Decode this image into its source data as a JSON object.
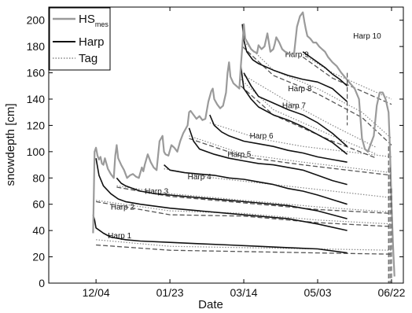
{
  "chart_data": {
    "type": "line",
    "xlabel": "Date",
    "ylabel": "snowdepth [cm]",
    "x_tick_labels": [
      "12/04",
      "01/23",
      "03/14",
      "05/03",
      "06/22"
    ],
    "x_tick_values": [
      0,
      50,
      100,
      150,
      200
    ],
    "xlim": [
      -32,
      208
    ],
    "ylim": [
      0,
      210
    ],
    "y_ticks": [
      0,
      20,
      40,
      60,
      80,
      100,
      120,
      140,
      160,
      180,
      200
    ],
    "grid": false,
    "legend": {
      "placement": "top-left",
      "entries": [
        {
          "text": "HS",
          "subscript": "mes",
          "style": "gray-solid-thick"
        },
        {
          "text": "Harp",
          "style": "black-solid"
        },
        {
          "text": "Tag",
          "style": "gray-dotted"
        }
      ]
    },
    "colors": {
      "hs": "#9a9a9a",
      "harp": "#111111",
      "tag": "#888888",
      "dashed": "#555555"
    },
    "series": [
      {
        "name": "HS",
        "style": "hs",
        "x": [
          -2,
          -1,
          0,
          1,
          2,
          3,
          4,
          5,
          6,
          8,
          10,
          12,
          13,
          14,
          15,
          17,
          19,
          21,
          23,
          25,
          27,
          29,
          31,
          32,
          33,
          35,
          37,
          39,
          41,
          43,
          45,
          46,
          47,
          49,
          51,
          53,
          55,
          57,
          59,
          62,
          63,
          64,
          66,
          68,
          70,
          72,
          74,
          76,
          78,
          79,
          80,
          82,
          84,
          86,
          88,
          89,
          90,
          91,
          93,
          95,
          97,
          98,
          99,
          100,
          101,
          103,
          105,
          107,
          109,
          110,
          112,
          114,
          116,
          118,
          120,
          121,
          122,
          124,
          126,
          128,
          130,
          132,
          134,
          136,
          138,
          140,
          141,
          142,
          143,
          145,
          147,
          149,
          151,
          153,
          155,
          157,
          160,
          163,
          166,
          169,
          172,
          175,
          178,
          180,
          182,
          184,
          186,
          188,
          190,
          192,
          194,
          196,
          198,
          199,
          200,
          201,
          202
        ],
        "y": [
          38,
          100,
          103,
          97,
          94,
          96,
          91,
          90,
          95,
          87,
          83,
          80,
          97,
          105,
          95,
          90,
          86,
          80,
          82,
          83,
          81,
          80,
          88,
          85,
          90,
          98,
          92,
          88,
          86,
          108,
          112,
          100,
          98,
          97,
          105,
          103,
          100,
          108,
          114,
          120,
          130,
          131,
          128,
          125,
          127,
          124,
          125,
          138,
          146,
          148,
          140,
          136,
          133,
          135,
          145,
          160,
          168,
          157,
          152,
          150,
          148,
          165,
          180,
          197,
          186,
          182,
          178,
          176,
          175,
          181,
          178,
          180,
          190,
          176,
          178,
          182,
          187,
          183,
          178,
          176,
          175,
          174,
          174,
          195,
          203,
          206,
          199,
          193,
          188,
          186,
          183,
          183,
          180,
          178,
          176,
          172,
          168,
          165,
          160,
          156,
          152,
          148,
          140,
          110,
          102,
          100,
          106,
          112,
          135,
          145,
          145,
          140,
          130,
          100,
          60,
          30,
          5
        ]
      },
      {
        "name": "Harp 1",
        "style": "harp",
        "x": [
          -2,
          -1,
          0,
          5,
          10,
          20,
          30,
          50,
          70,
          90,
          110,
          130,
          150,
          170
        ],
        "y": [
          52,
          48,
          42,
          38,
          35,
          33,
          32,
          31,
          30,
          29,
          28,
          27,
          26,
          23
        ]
      },
      {
        "name": "Harp 1 band",
        "style": "tag",
        "x": [
          0,
          50,
          100,
          150,
          200
        ],
        "y": [
          33,
          28,
          27,
          26,
          25
        ]
      },
      {
        "name": "Harp 1 band 2",
        "style": "dashed",
        "x": [
          0,
          50,
          100,
          150,
          200
        ],
        "y": [
          29,
          25,
          24,
          23,
          22
        ]
      },
      {
        "name": "Harp 2",
        "style": "harp",
        "x": [
          0,
          2,
          5,
          10,
          15,
          20,
          30,
          50,
          70,
          90,
          110,
          130,
          150,
          170
        ],
        "y": [
          95,
          82,
          74,
          68,
          64,
          62,
          60,
          57,
          55,
          53,
          51,
          49,
          45,
          40
        ]
      },
      {
        "name": "Harp 2 band",
        "style": "tag",
        "x": [
          0,
          50,
          100,
          150,
          200
        ],
        "y": [
          63,
          55,
          53,
          48,
          45
        ]
      },
      {
        "name": "Harp 2 band 2",
        "style": "dashed",
        "x": [
          0,
          50,
          100,
          150,
          200
        ],
        "y": [
          62,
          52,
          51,
          46,
          43
        ]
      },
      {
        "name": "Harp 3",
        "style": "harp",
        "x": [
          14,
          17,
          20,
          25,
          30,
          40,
          50,
          70,
          90,
          110,
          130,
          150,
          170
        ],
        "y": [
          80,
          76,
          74,
          72,
          70,
          68,
          67,
          65,
          63,
          61,
          59,
          55,
          49
        ]
      },
      {
        "name": "Harp 3 band",
        "style": "tag",
        "x": [
          14,
          50,
          100,
          150,
          200
        ],
        "y": [
          74,
          68,
          63,
          58,
          54
        ]
      },
      {
        "name": "Harp 3 band 2",
        "style": "dashed",
        "x": [
          14,
          50,
          100,
          150,
          200
        ],
        "y": [
          73,
          66,
          61,
          56,
          53
        ]
      },
      {
        "name": "Harp 4",
        "style": "harp",
        "x": [
          46,
          50,
          60,
          70,
          80,
          90,
          100,
          110,
          120,
          130,
          140,
          150,
          170
        ],
        "y": [
          90,
          86,
          84,
          83,
          82,
          80,
          79,
          77,
          75,
          72,
          70,
          67,
          60
        ]
      },
      {
        "name": "Harp 4 band",
        "style": "tag",
        "x": [
          46,
          80,
          120,
          160,
          200
        ],
        "y": [
          87,
          80,
          75,
          70,
          65
        ]
      },
      {
        "name": "Harp 5",
        "style": "harp",
        "x": [
          63,
          66,
          70,
          80,
          90,
          100,
          110,
          120,
          130,
          140,
          150,
          160,
          170
        ],
        "y": [
          118,
          108,
          102,
          98,
          95,
          93,
          91,
          90,
          88,
          86,
          82,
          78,
          75
        ]
      },
      {
        "name": "Harp 5 band",
        "style": "tag",
        "x": [
          63,
          100,
          140,
          170,
          200
        ],
        "y": [
          112,
          98,
          92,
          88,
          84
        ]
      },
      {
        "name": "Harp 5 band 2",
        "style": "dashed",
        "x": [
          63,
          100,
          140,
          170,
          200
        ],
        "y": [
          110,
          96,
          90,
          86,
          82
        ]
      },
      {
        "name": "Harp 6",
        "style": "harp",
        "x": [
          77,
          80,
          85,
          90,
          100,
          110,
          120,
          130,
          140,
          150,
          160,
          170
        ],
        "y": [
          128,
          120,
          115,
          112,
          108,
          106,
          104,
          101,
          99,
          96,
          94,
          92
        ]
      },
      {
        "name": "Harp 6 band",
        "style": "tag",
        "x": [
          77,
          110,
          140,
          170,
          200
        ],
        "y": [
          122,
          110,
          104,
          100,
          96
        ]
      },
      {
        "name": "Harp 7",
        "style": "harp",
        "x": [
          98,
          100,
          105,
          110,
          120,
          130,
          140,
          150,
          160,
          170
        ],
        "y": [
          165,
          148,
          140,
          134,
          128,
          124,
          119,
          113,
          107,
          98
        ]
      },
      {
        "name": "Harp 7 band",
        "style": "tag",
        "x": [
          98,
          120,
          140,
          160,
          190
        ],
        "y": [
          155,
          132,
          122,
          112,
          98
        ]
      },
      {
        "name": "Harp 7 band 2",
        "style": "dashed",
        "x": [
          98,
          120,
          140,
          160,
          190
        ],
        "y": [
          150,
          128,
          118,
          108,
          95
        ]
      },
      {
        "name": "Harp 8",
        "style": "harp",
        "x": [
          100,
          105,
          110,
          120,
          130,
          140,
          150,
          160,
          170
        ],
        "y": [
          160,
          150,
          142,
          137,
          132,
          128,
          122,
          114,
          104
        ]
      },
      {
        "name": "Harp 8 band",
        "style": "tag",
        "x": [
          100,
          130,
          160,
          190
        ],
        "y": [
          158,
          138,
          120,
          103
        ]
      },
      {
        "name": "Harp 9",
        "style": "harp",
        "x": [
          99,
          100,
          102,
          106,
          110,
          120,
          130,
          140,
          150,
          160,
          170
        ],
        "y": [
          197,
          185,
          176,
          170,
          167,
          162,
          158,
          155,
          153,
          148,
          138
        ]
      },
      {
        "name": "Harp 9 band",
        "style": "tag",
        "x": [
          99,
          120,
          150,
          180,
          200
        ],
        "y": [
          185,
          162,
          148,
          130,
          110
        ]
      },
      {
        "name": "Harp 9 band 2",
        "style": "dashed",
        "x": [
          99,
          120,
          150,
          180,
          200
        ],
        "y": [
          180,
          158,
          144,
          126,
          105
        ]
      },
      {
        "name": "Harp 10",
        "style": "harp",
        "x": [
          140,
          145,
          150,
          155,
          160,
          165,
          170
        ],
        "y": [
          176,
          172,
          168,
          164,
          159,
          155,
          150
        ]
      },
      {
        "name": "Harp 10 band",
        "style": "tag",
        "x": [
          140,
          160,
          180,
          200
        ],
        "y": [
          174,
          160,
          150,
          140
        ]
      },
      {
        "name": "Harp 10 band 2",
        "style": "dashed",
        "x": [
          140,
          160,
          180,
          200
        ],
        "y": [
          172,
          156,
          146,
          136
        ]
      }
    ],
    "verticals": [
      {
        "x": 170,
        "y_top": 160,
        "y_bottom": 120
      },
      {
        "x": 198,
        "y_top": 104,
        "y_bottom": 0
      },
      {
        "x": 199,
        "y_top": 88,
        "y_bottom": 0
      },
      {
        "x": 200,
        "y_top": 72,
        "y_bottom": 0
      }
    ],
    "annotations": [
      {
        "text": "Harp 1",
        "x": 8,
        "y": 34
      },
      {
        "text": "Harp 2",
        "x": 10,
        "y": 56
      },
      {
        "text": "Harp 3",
        "x": 33,
        "y": 68
      },
      {
        "text": "Harp 4",
        "x": 62,
        "y": 79
      },
      {
        "text": "Harp 5",
        "x": 89,
        "y": 96
      },
      {
        "text": "Harp 6",
        "x": 104,
        "y": 110
      },
      {
        "text": "Harp 7",
        "x": 126,
        "y": 133
      },
      {
        "text": "Harp 8",
        "x": 130,
        "y": 146
      },
      {
        "text": "Harp 9",
        "x": 128,
        "y": 172
      },
      {
        "text": "Harp 10",
        "x": 174,
        "y": 186
      }
    ]
  }
}
